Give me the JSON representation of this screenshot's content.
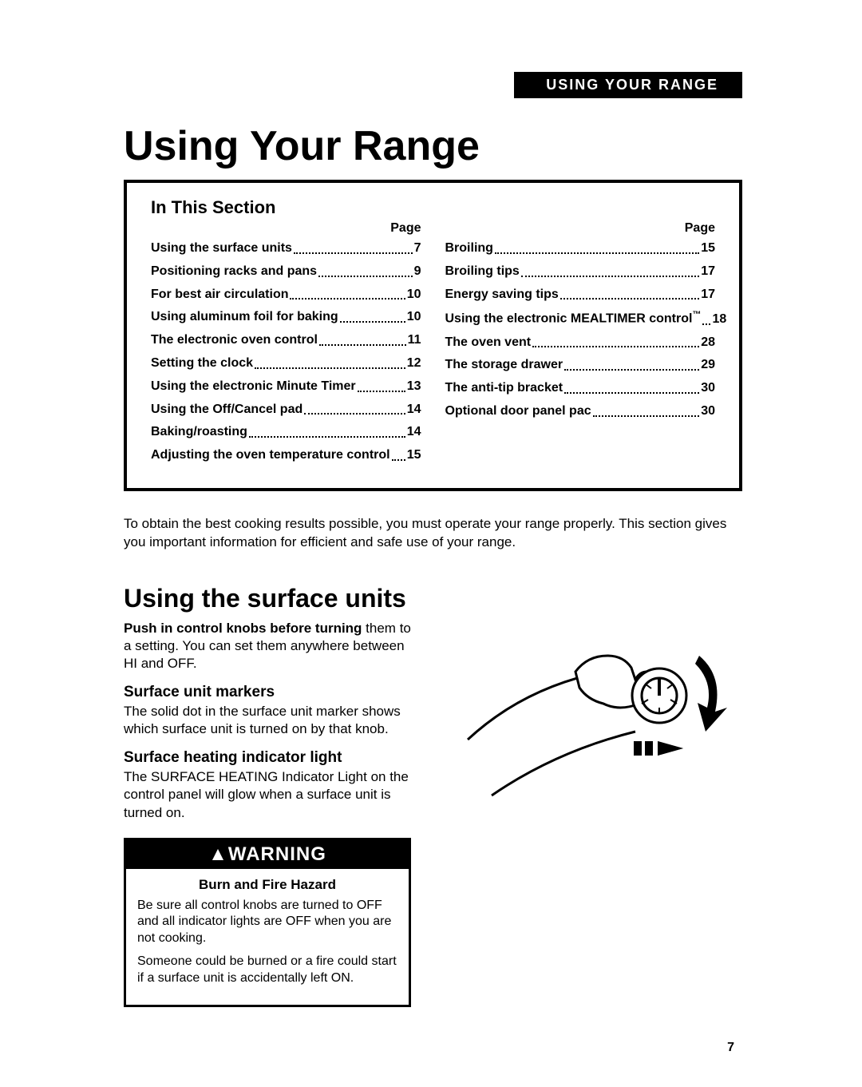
{
  "header_tab": "USING YOUR RANGE",
  "main_title": "Using Your Range",
  "toc": {
    "title": "In This Section",
    "page_label": "Page",
    "left": [
      {
        "label": "Using the surface units",
        "page": "7"
      },
      {
        "label": "Positioning racks and pans",
        "page": "9"
      },
      {
        "label": "For best air circulation",
        "page": "10"
      },
      {
        "label": "Using aluminum foil for baking",
        "page": "10"
      },
      {
        "label": "The electronic oven control",
        "page": "11"
      },
      {
        "label": "Setting the clock",
        "page": "12"
      },
      {
        "label": "Using the electronic Minute Timer",
        "page": "13"
      },
      {
        "label": "Using the Off/Cancel pad",
        "page": "14"
      },
      {
        "label": "Baking/roasting",
        "page": "14"
      },
      {
        "label": "Adjusting the oven temperature control",
        "page": "15"
      }
    ],
    "right": [
      {
        "label": "Broiling",
        "page": "15"
      },
      {
        "label": "Broiling tips",
        "page": "17"
      },
      {
        "label": "Energy saving tips",
        "page": "17"
      },
      {
        "label": "Using the electronic MEALTIMER™ control",
        "page": "18"
      },
      {
        "label": "The oven vent",
        "page": "28"
      },
      {
        "label": "The storage drawer",
        "page": "29"
      },
      {
        "label": "The anti-tip bracket",
        "page": "30"
      },
      {
        "label": "Optional door panel pac",
        "page": "30"
      }
    ]
  },
  "intro": "To obtain the best cooking results possible, you must operate your range properly. This section gives you important information for efficient and safe use of your range.",
  "section": {
    "heading": "Using the surface units",
    "push_bold": "Push in control knobs before turning",
    "push_rest": " them to a setting. You can set them anywhere between HI and OFF.",
    "markers_heading": "Surface unit markers",
    "markers_body": "The solid dot in the surface unit marker shows which surface unit is turned on by that knob.",
    "indicator_heading": "Surface heating indicator light",
    "indicator_body": "The SURFACE HEATING Indicator Light on the control panel will glow when a surface unit is turned on."
  },
  "warning": {
    "header": "WARNING",
    "subtitle": "Burn and Fire Hazard",
    "p1": "Be sure all control knobs are turned to OFF and all indicator lights are OFF when you are not cooking.",
    "p2": "Someone could be burned or a fire could start if a surface unit is accidentally left ON."
  },
  "page_number": "7",
  "colors": {
    "black": "#000000",
    "white": "#ffffff"
  }
}
